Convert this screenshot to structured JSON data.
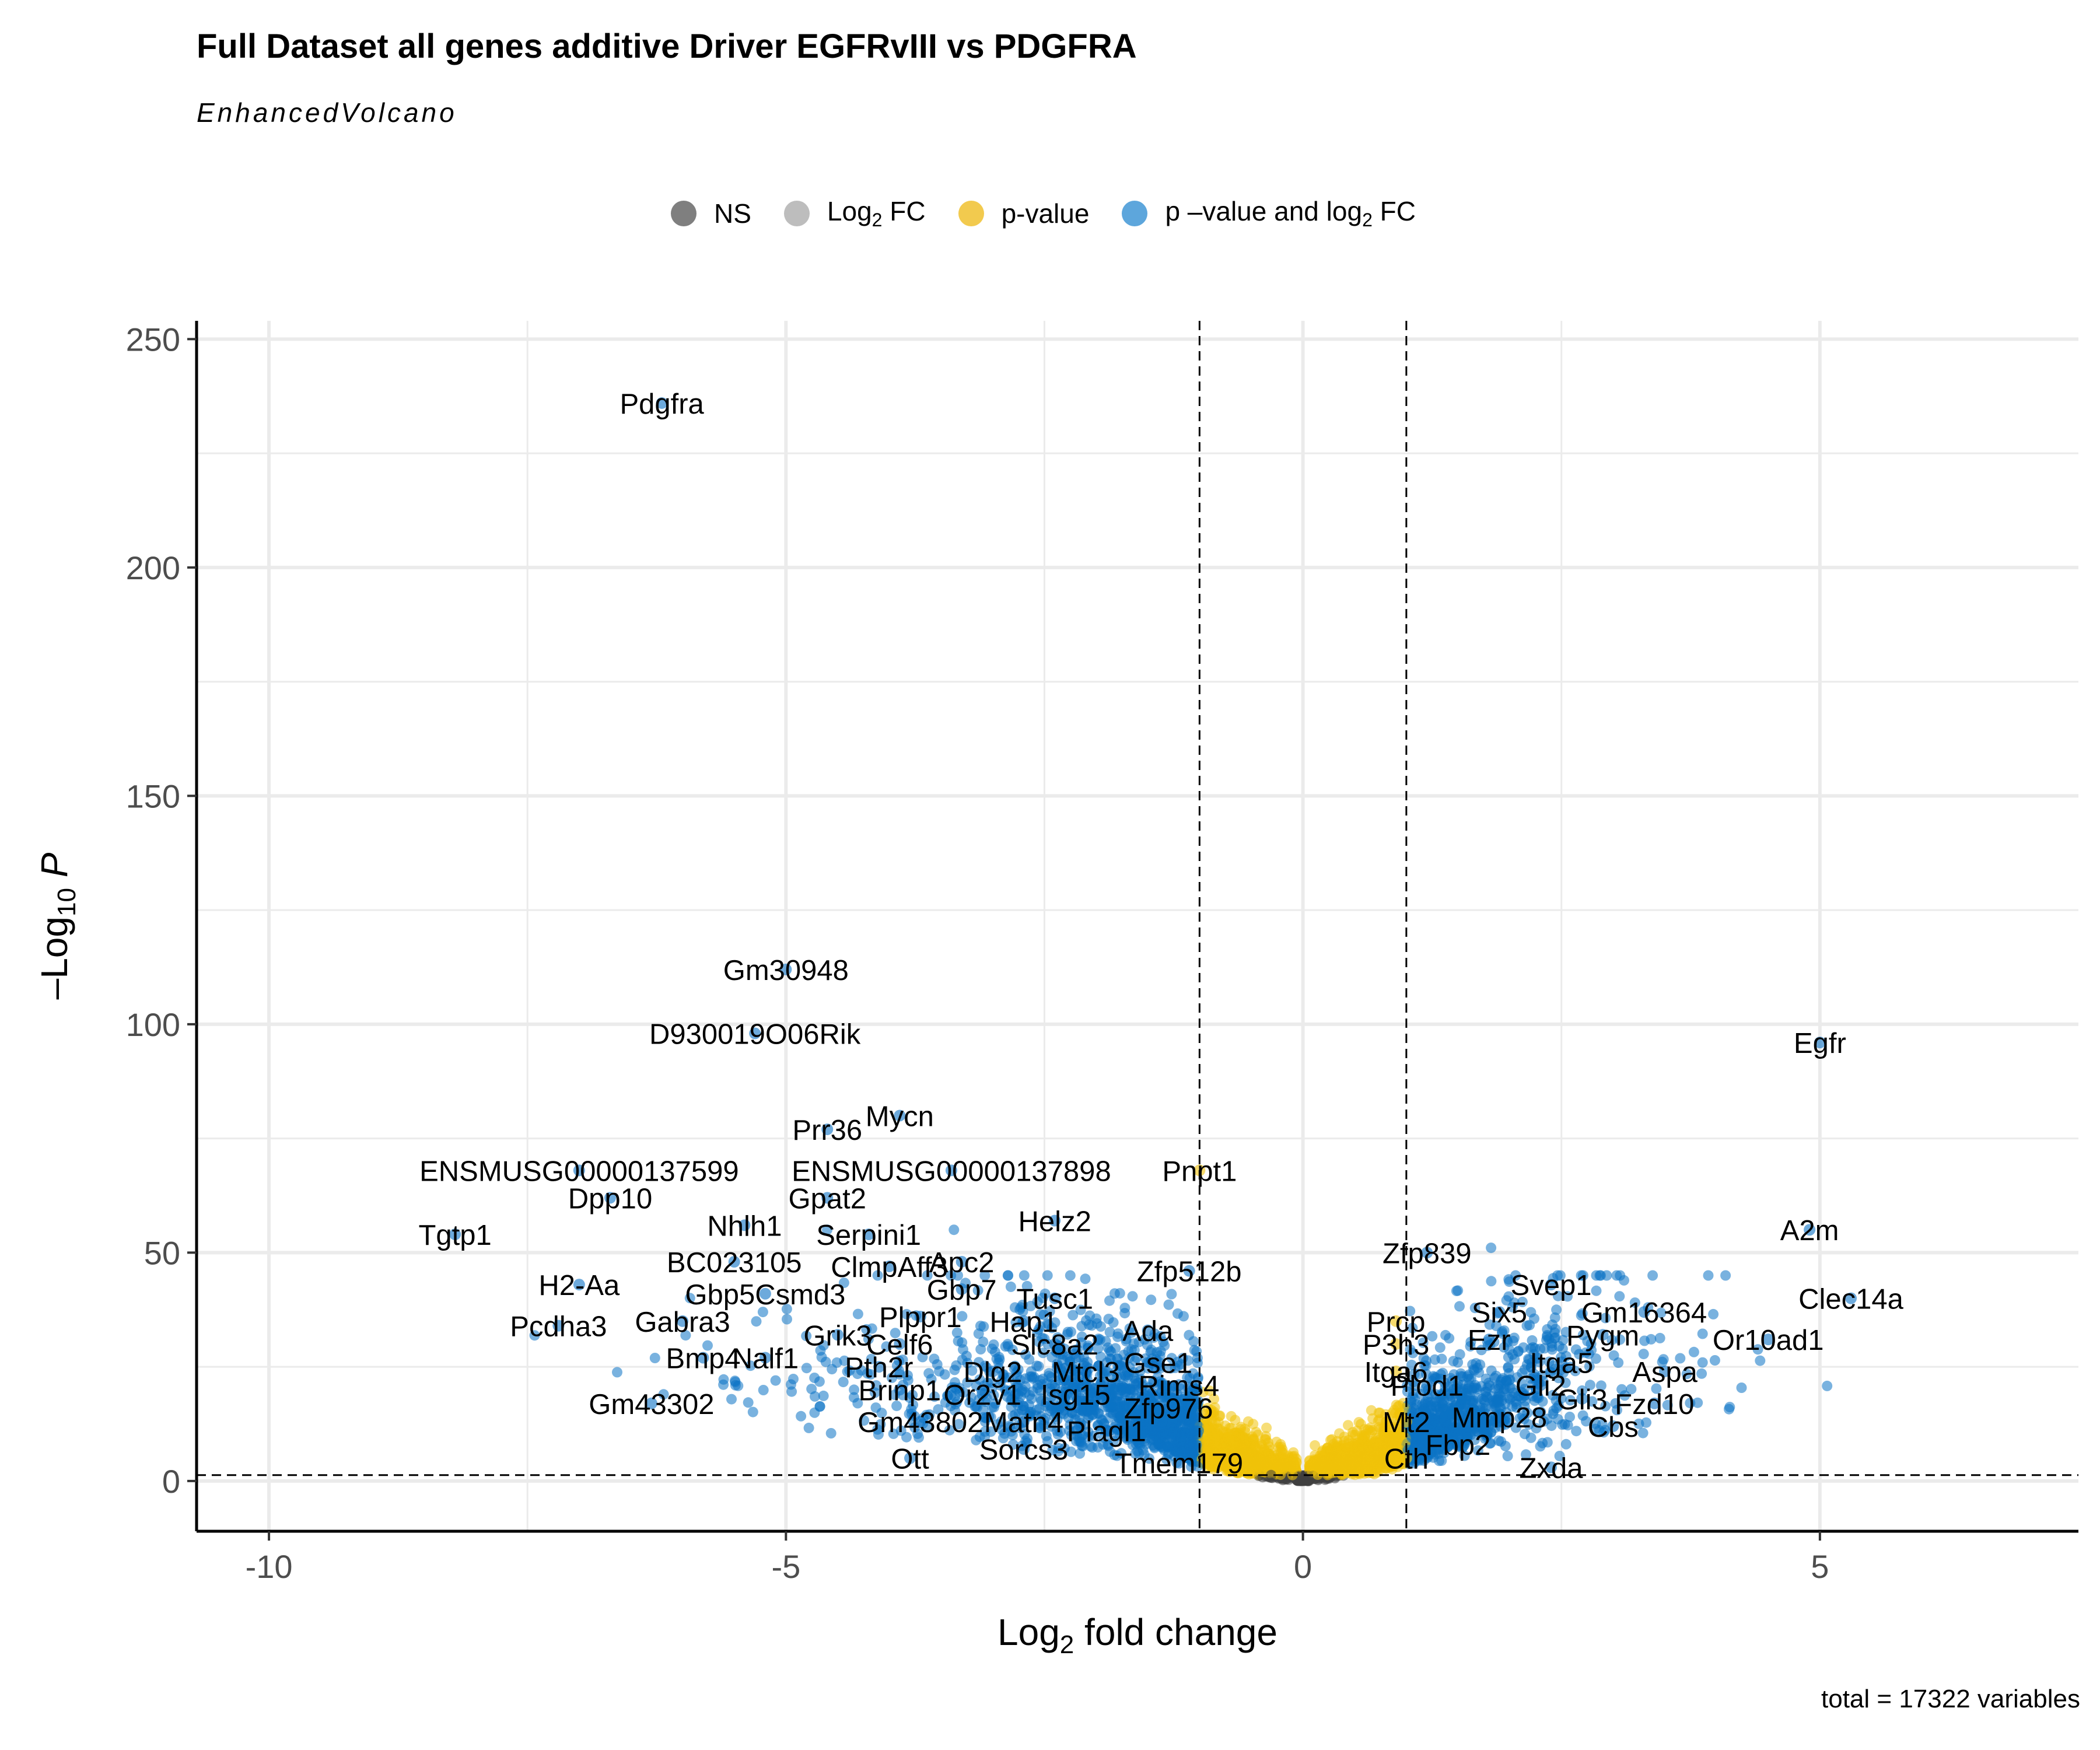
{
  "title": "Full Dataset all genes additive Driver EGFRvIII vs PDGFRA",
  "subtitle": "EnhancedVolcano",
  "caption": "total = 17322 variables",
  "legend": [
    {
      "base": "NS",
      "sub": "",
      "tail": "",
      "color": "#7f7f7f",
      "name": "legend-ns"
    },
    {
      "base": "Log",
      "sub": "2",
      "tail": " FC",
      "color": "#bdbdbd",
      "name": "legend-log2fc"
    },
    {
      "base": "p-value",
      "sub": "",
      "tail": "",
      "color": "#f2ca4e",
      "name": "legend-pvalue"
    },
    {
      "base": "p –value and log",
      "sub": "2",
      "tail": " FC",
      "color": "#5da6dc",
      "name": "legend-pvalue-and-log2fc"
    }
  ],
  "colors": {
    "ns": "#3f3f3f",
    "log2fc": "#a8a8a8",
    "pvalue": "#f0c20a",
    "both": "#0b72c4",
    "grid": "#ebebeb"
  },
  "chart_data": {
    "type": "scatter",
    "xlabel": {
      "base": "Log",
      "sub": "2",
      "tail": " fold change"
    },
    "ylabel": {
      "base": "–Log",
      "sub": "10",
      "tail": " P"
    },
    "xlim": [
      -10.7,
      7.5
    ],
    "ylim": [
      -11,
      254
    ],
    "x_ticks": [
      -10,
      -5,
      0,
      5
    ],
    "x_tick_labels": [
      "-10",
      "-5",
      "0",
      "5"
    ],
    "y_ticks": [
      0,
      50,
      100,
      150,
      200,
      250
    ],
    "y_tick_labels": [
      "0",
      "50",
      "100",
      "150",
      "200",
      "250"
    ],
    "grid": true,
    "fc_cutoff": 1,
    "p_cutoff_log10": 1.3,
    "labeled_points": [
      {
        "gene": "Pdgfra",
        "x": -6.2,
        "y": 236
      },
      {
        "gene": "Gm30948",
        "x": -5.0,
        "y": 112
      },
      {
        "gene": "D930019O06Rik",
        "x": -5.3,
        "y": 98
      },
      {
        "gene": "Egfr",
        "x": 5.0,
        "y": 96
      },
      {
        "gene": "Mycn",
        "x": -3.9,
        "y": 80
      },
      {
        "gene": "Prr36",
        "x": -4.6,
        "y": 77
      },
      {
        "gene": "ENSMUSG00000137599",
        "x": -7.0,
        "y": 68
      },
      {
        "gene": "ENSMUSG00000137898",
        "x": -3.4,
        "y": 68
      },
      {
        "gene": "Pnpt1",
        "x": -1.0,
        "y": 68
      },
      {
        "gene": "Dpp10",
        "x": -6.7,
        "y": 62
      },
      {
        "gene": "Gpat2",
        "x": -4.6,
        "y": 62
      },
      {
        "gene": "Helz2",
        "x": -2.4,
        "y": 57
      },
      {
        "gene": "Nhlh1",
        "x": -5.4,
        "y": 56
      },
      {
        "gene": "A2m",
        "x": 4.9,
        "y": 55
      },
      {
        "gene": "Serpini1",
        "x": -4.2,
        "y": 54
      },
      {
        "gene": "Tgtp1",
        "x": -8.2,
        "y": 54
      },
      {
        "gene": "Zfp839",
        "x": 1.2,
        "y": 50
      },
      {
        "gene": "BC023105",
        "x": -5.5,
        "y": 48
      },
      {
        "gene": "Apc2",
        "x": -3.3,
        "y": 48
      },
      {
        "gene": "ClmpAff3",
        "x": -4.0,
        "y": 47
      },
      {
        "gene": "Zfp512b",
        "x": -1.1,
        "y": 46
      },
      {
        "gene": "H2-Aa",
        "x": -7.0,
        "y": 43
      },
      {
        "gene": "Svep1",
        "x": 2.4,
        "y": 43
      },
      {
        "gene": "Gbp7",
        "x": -3.3,
        "y": 42
      },
      {
        "gene": "Gbp5Csmd3",
        "x": -5.2,
        "y": 41
      },
      {
        "gene": "Clec14a",
        "x": 5.3,
        "y": 40
      },
      {
        "gene": "Tusc1",
        "x": -2.4,
        "y": 40
      },
      {
        "gene": "Six5",
        "x": 1.9,
        "y": 37
      },
      {
        "gene": "Gm16364",
        "x": 3.3,
        "y": 37
      },
      {
        "gene": "Plppr1",
        "x": -3.7,
        "y": 36
      },
      {
        "gene": "Gabra3",
        "x": -6.0,
        "y": 35
      },
      {
        "gene": "Prcp",
        "x": 0.9,
        "y": 35
      },
      {
        "gene": "Hap1",
        "x": -2.7,
        "y": 35
      },
      {
        "gene": "Pcdha3",
        "x": -7.2,
        "y": 34
      },
      {
        "gene": "Grik3",
        "x": -4.5,
        "y": 32
      },
      {
        "gene": "Ada",
        "x": -1.5,
        "y": 33
      },
      {
        "gene": "Pygm",
        "x": 2.9,
        "y": 32
      },
      {
        "gene": "Or10ad1",
        "x": 4.5,
        "y": 31
      },
      {
        "gene": "Ezr",
        "x": 1.8,
        "y": 31
      },
      {
        "gene": "Celf6",
        "x": -3.9,
        "y": 30
      },
      {
        "gene": "P3h3",
        "x": 0.9,
        "y": 30
      },
      {
        "gene": "Slc8a2",
        "x": -2.4,
        "y": 30
      },
      {
        "gene": "Bmp4",
        "x": -5.8,
        "y": 27
      },
      {
        "gene": "Nalf1",
        "x": -5.2,
        "y": 27
      },
      {
        "gene": "Itga5",
        "x": 2.5,
        "y": 26
      },
      {
        "gene": "Gse1",
        "x": -1.4,
        "y": 26
      },
      {
        "gene": "Pth2r",
        "x": -4.1,
        "y": 25
      },
      {
        "gene": "Dlg2",
        "x": -3.0,
        "y": 24
      },
      {
        "gene": "Mtcl3",
        "x": -2.1,
        "y": 24
      },
      {
        "gene": "Aspa",
        "x": 3.5,
        "y": 24
      },
      {
        "gene": "Itga6",
        "x": 0.9,
        "y": 24
      },
      {
        "gene": "Rims4",
        "x": -1.2,
        "y": 21
      },
      {
        "gene": "Gli2",
        "x": 2.3,
        "y": 21
      },
      {
        "gene": "Plod1",
        "x": 1.2,
        "y": 21
      },
      {
        "gene": "Brinp1",
        "x": -3.9,
        "y": 20
      },
      {
        "gene": "Or2v1",
        "x": -3.1,
        "y": 19
      },
      {
        "gene": "Isg15",
        "x": -2.2,
        "y": 19
      },
      {
        "gene": "Gli3",
        "x": 2.7,
        "y": 18
      },
      {
        "gene": "Gm43302",
        "x": -6.3,
        "y": 17
      },
      {
        "gene": "Zfp976",
        "x": -1.3,
        "y": 16
      },
      {
        "gene": "Fzd10",
        "x": 3.4,
        "y": 17
      },
      {
        "gene": "Mmp28",
        "x": 1.9,
        "y": 14
      },
      {
        "gene": "Gm43802",
        "x": -3.7,
        "y": 13
      },
      {
        "gene": "Matn4",
        "x": -2.7,
        "y": 13
      },
      {
        "gene": "Mt2",
        "x": 1.0,
        "y": 13
      },
      {
        "gene": "Cbs",
        "x": 3.0,
        "y": 12
      },
      {
        "gene": "Plagl1",
        "x": -1.9,
        "y": 11
      },
      {
        "gene": "Fbp2",
        "x": 1.5,
        "y": 8
      },
      {
        "gene": "Sorcs3",
        "x": -2.7,
        "y": 7
      },
      {
        "gene": "Cth",
        "x": 1.0,
        "y": 5
      },
      {
        "gene": "Ott",
        "x": -3.8,
        "y": 5
      },
      {
        "gene": "Tmem179",
        "x": -1.2,
        "y": 4
      },
      {
        "gene": "Zxda",
        "x": 2.4,
        "y": 3
      }
    ]
  }
}
